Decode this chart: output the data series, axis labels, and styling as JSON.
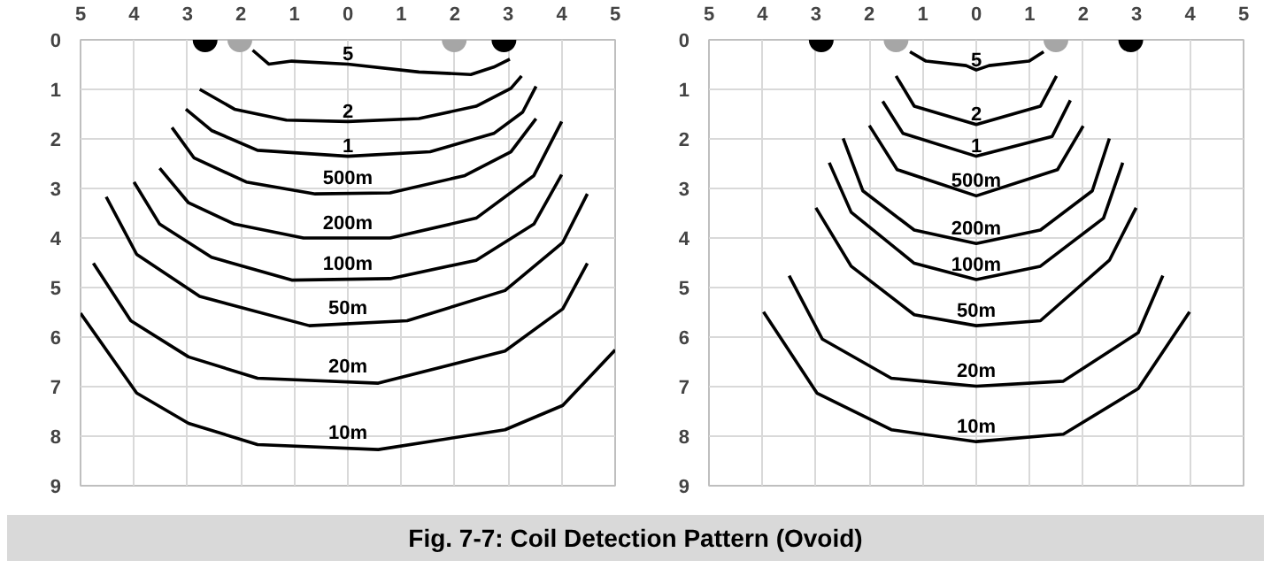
{
  "chart_data": [
    {
      "type": "line",
      "xlim": [
        -5,
        5
      ],
      "ylim": [
        9,
        0
      ],
      "xticks": [
        {
          "value": -5,
          "label": "5"
        },
        {
          "value": -4,
          "label": "4"
        },
        {
          "value": -3,
          "label": "3"
        },
        {
          "value": -2,
          "label": "2"
        },
        {
          "value": -1,
          "label": "1"
        },
        0,
        1,
        2,
        3,
        4,
        5
      ],
      "yticks": [
        0,
        1,
        2,
        3,
        4,
        5,
        6,
        7,
        8,
        9
      ],
      "grid": true,
      "legend": false,
      "line_style": "solid",
      "annotations": [
        "Fig. 7-7:  Coil Detection Pattern (Ovoid)"
      ],
      "series": [
        {
          "name": "5",
          "color": "#000000",
          "x": [
            -1.78,
            -1.48,
            -1.05,
            0,
            1.33,
            2.3,
            2.73,
            3.03
          ],
          "values": [
            0.21,
            0.49,
            0.43,
            0.49,
            0.65,
            0.7,
            0.55,
            0.39
          ]
        },
        {
          "name": "2",
          "color": "#000000",
          "x": [
            -2.77,
            -2.12,
            -1.15,
            0,
            1.33,
            2.4,
            3.05,
            3.25
          ],
          "values": [
            1.0,
            1.4,
            1.62,
            1.65,
            1.59,
            1.34,
            0.98,
            0.73
          ]
        },
        {
          "name": "1",
          "color": "#000000",
          "x": [
            -3.03,
            -2.55,
            -1.69,
            0,
            1.54,
            2.73,
            3.27,
            3.52
          ],
          "values": [
            1.4,
            1.83,
            2.23,
            2.35,
            2.26,
            1.89,
            1.46,
            0.94
          ]
        },
        {
          "name": "500m",
          "color": "#000000",
          "x": [
            -3.29,
            -2.88,
            -1.9,
            -0.61,
            0.79,
            2.19,
            3.05,
            3.52
          ],
          "values": [
            1.77,
            2.38,
            2.87,
            3.11,
            3.09,
            2.74,
            2.26,
            1.59
          ]
        },
        {
          "name": "200m",
          "color": "#000000",
          "x": [
            -3.52,
            -2.98,
            -2.12,
            -0.83,
            0.79,
            2.4,
            3.48,
            4.0
          ],
          "values": [
            2.59,
            3.29,
            3.72,
            4.0,
            4.0,
            3.6,
            2.74,
            1.65
          ]
        },
        {
          "name": "100m",
          "color": "#000000",
          "x": [
            -4.0,
            -3.52,
            -2.55,
            -1.05,
            0.79,
            2.4,
            3.48,
            4.0
          ],
          "values": [
            2.87,
            3.72,
            4.39,
            4.85,
            4.82,
            4.45,
            3.72,
            2.72
          ]
        },
        {
          "name": "50m",
          "color": "#000000",
          "x": [
            -4.52,
            -3.95,
            -2.77,
            -0.72,
            1.11,
            2.94,
            4.02,
            4.48
          ],
          "values": [
            3.17,
            4.33,
            5.18,
            5.77,
            5.67,
            5.06,
            4.09,
            3.11
          ]
        },
        {
          "name": "20m",
          "color": "#000000",
          "x": [
            -4.76,
            -4.06,
            -2.98,
            -1.69,
            0.57,
            2.94,
            4.02,
            4.48
          ],
          "values": [
            4.51,
            5.67,
            6.4,
            6.83,
            6.93,
            6.28,
            5.43,
            4.51
          ]
        },
        {
          "name": "10m",
          "color": "#000000",
          "x": [
            -5.0,
            -3.95,
            -2.98,
            -1.69,
            0.57,
            2.94,
            4.02,
            5.0
          ],
          "values": [
            5.52,
            7.13,
            7.74,
            8.17,
            8.27,
            7.87,
            7.38,
            6.26
          ]
        },
        {
          "type": "scatter",
          "marker": "circle",
          "color": "#000000",
          "x": [
            -2.67,
            2.92
          ],
          "values": [
            0,
            0
          ]
        },
        {
          "type": "scatter",
          "marker": "circle",
          "color": "#a6a6a6",
          "x": [
            -2.02,
            1.99
          ],
          "values": [
            0,
            0
          ]
        }
      ]
    },
    {
      "type": "line",
      "xlim": [
        -5,
        5
      ],
      "ylim": [
        9,
        0
      ],
      "xticks": [
        {
          "value": -5,
          "label": "5"
        },
        {
          "value": -4,
          "label": "4"
        },
        {
          "value": -3,
          "label": "3"
        },
        {
          "value": -2,
          "label": "2"
        },
        {
          "value": -1,
          "label": "1"
        },
        0,
        1,
        2,
        3,
        4,
        5
      ],
      "yticks": [
        0,
        1,
        2,
        3,
        4,
        5,
        6,
        7,
        8,
        9
      ],
      "grid": true,
      "legend": false,
      "line_style": "solid",
      "series": [
        {
          "name": "5",
          "color": "#000000",
          "x": [
            -1.24,
            -0.94,
            -0.19,
            0,
            0.24,
            0.99,
            1.26
          ],
          "values": [
            0.24,
            0.43,
            0.52,
            0.61,
            0.52,
            0.43,
            0.24
          ]
        },
        {
          "name": "2",
          "color": "#000000",
          "x": [
            -1.5,
            -1.16,
            0,
            1.2,
            1.5
          ],
          "values": [
            0.73,
            1.34,
            1.71,
            1.34,
            0.73
          ]
        },
        {
          "name": "1",
          "color": "#000000",
          "x": [
            -1.75,
            -1.37,
            0,
            1.42,
            1.76
          ],
          "values": [
            1.24,
            1.89,
            2.35,
            1.95,
            1.22
          ]
        },
        {
          "name": "500m",
          "color": "#000000",
          "x": [
            -2.0,
            -1.48,
            0,
            1.52,
            2.0
          ],
          "values": [
            1.73,
            2.62,
            3.15,
            2.62,
            1.74
          ]
        },
        {
          "name": "200m",
          "color": "#000000",
          "x": [
            -2.49,
            -2.12,
            -1.16,
            0,
            1.2,
            2.17,
            2.49
          ],
          "values": [
            1.99,
            3.05,
            3.84,
            4.11,
            3.84,
            3.05,
            1.99
          ]
        },
        {
          "name": "100m",
          "color": "#000000",
          "x": [
            -2.75,
            -2.34,
            -1.16,
            0,
            1.2,
            2.38,
            2.74
          ],
          "values": [
            2.48,
            3.48,
            4.51,
            4.84,
            4.57,
            3.6,
            2.48
          ]
        },
        {
          "name": "50m",
          "color": "#000000",
          "x": [
            -3.0,
            -2.34,
            -1.16,
            0,
            1.2,
            2.49,
            2.99
          ],
          "values": [
            3.39,
            4.57,
            5.55,
            5.77,
            5.67,
            4.45,
            3.39
          ]
        },
        {
          "name": "20m",
          "color": "#000000",
          "x": [
            -3.5,
            -2.88,
            -1.59,
            0,
            1.63,
            3.03,
            3.49
          ],
          "values": [
            4.76,
            6.04,
            6.83,
            6.99,
            6.89,
            5.91,
            4.76
          ]
        },
        {
          "name": "10m",
          "color": "#000000",
          "x": [
            -3.98,
            -2.98,
            -1.59,
            0,
            1.63,
            3.03,
            3.99
          ],
          "values": [
            5.49,
            7.13,
            7.87,
            8.11,
            7.96,
            7.04,
            5.49
          ]
        },
        {
          "type": "scatter",
          "marker": "circle",
          "color": "#000000",
          "x": [
            -2.9,
            2.89
          ],
          "values": [
            0,
            0
          ]
        },
        {
          "type": "scatter",
          "marker": "circle",
          "color": "#a6a6a6",
          "x": [
            -1.5,
            1.49
          ],
          "values": [
            0,
            0
          ]
        }
      ]
    }
  ]
}
